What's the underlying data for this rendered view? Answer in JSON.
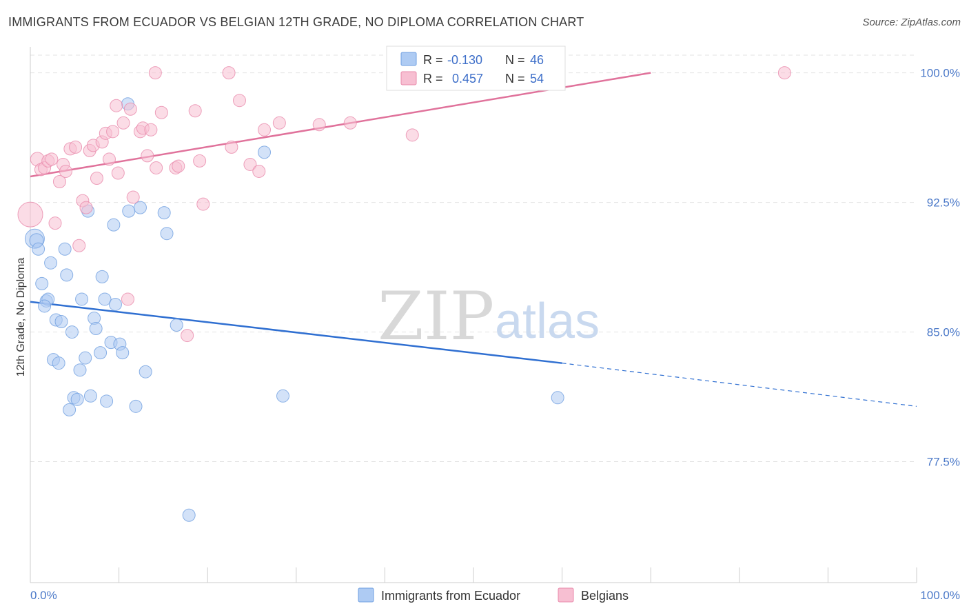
{
  "header": {
    "title": "IMMIGRANTS FROM ECUADOR VS BELGIAN 12TH GRADE, NO DIPLOMA CORRELATION CHART",
    "source": "Source: ZipAtlas.com"
  },
  "watermark": {
    "part1": "ZIP",
    "part2": "atlas"
  },
  "legend": {
    "r_label": "R =",
    "n_label": "N =",
    "items": [
      {
        "name": "Immigrants from Ecuador",
        "r": "-0.130",
        "n": "46",
        "color": "#aecbf3",
        "stroke": "#6f9fe0"
      },
      {
        "name": "Belgians",
        "r": "0.457",
        "n": "54",
        "color": "#f7bfd2",
        "stroke": "#e88aab"
      }
    ]
  },
  "chart_data": {
    "type": "scatter",
    "title": "IMMIGRANTS FROM ECUADOR VS BELGIAN 12TH GRADE, NO DIPLOMA CORRELATION CHART",
    "xlabel": "",
    "ylabel": "12th Grade, No Diploma",
    "xlim": [
      0,
      100
    ],
    "ylim": [
      70.5,
      101.5
    ],
    "x_tick_labels": [
      "0.0%",
      "100.0%"
    ],
    "y_ticks": [
      77.5,
      85.0,
      92.5,
      100.0
    ],
    "y_tick_labels": [
      "77.5%",
      "85.0%",
      "92.5%",
      "100.0%"
    ],
    "grid": true,
    "legend_position": "top-center",
    "series": [
      {
        "name": "Immigrants from Ecuador",
        "color": "#6f9fe0",
        "fill": "#aecbf3",
        "trend": {
          "x0": 0,
          "y0": 86.75,
          "x1": 60,
          "y1": 83.2,
          "dashed_to_x": 100,
          "dashed_to_y": 80.7
        },
        "points": [
          [
            0.5,
            90.4,
            14
          ],
          [
            0.7,
            90.3,
            10
          ],
          [
            0.9,
            89.8,
            9
          ],
          [
            2.3,
            89.0,
            9
          ],
          [
            3.9,
            89.8,
            9
          ],
          [
            4.1,
            88.3,
            9
          ],
          [
            1.3,
            87.8,
            9
          ],
          [
            1.8,
            86.8,
            9
          ],
          [
            2.0,
            86.9,
            9
          ],
          [
            1.6,
            86.5,
            9
          ],
          [
            2.9,
            85.7,
            9
          ],
          [
            3.5,
            85.6,
            9
          ],
          [
            4.7,
            85.0,
            9
          ],
          [
            5.8,
            86.9,
            9
          ],
          [
            7.2,
            85.8,
            9
          ],
          [
            7.4,
            85.2,
            9
          ],
          [
            8.1,
            88.2,
            9
          ],
          [
            8.4,
            86.9,
            9
          ],
          [
            9.6,
            86.6,
            9
          ],
          [
            9.1,
            84.4,
            9
          ],
          [
            10.1,
            84.3,
            9
          ],
          [
            10.4,
            83.8,
            9
          ],
          [
            7.9,
            83.8,
            9
          ],
          [
            6.2,
            83.5,
            9
          ],
          [
            2.6,
            83.4,
            9
          ],
          [
            3.2,
            83.2,
            9
          ],
          [
            5.6,
            82.8,
            9
          ],
          [
            13.0,
            82.7,
            9
          ],
          [
            4.9,
            81.2,
            9
          ],
          [
            5.3,
            81.1,
            9
          ],
          [
            6.8,
            81.3,
            9
          ],
          [
            8.6,
            81.0,
            9
          ],
          [
            11.9,
            80.7,
            9
          ],
          [
            4.4,
            80.5,
            9
          ],
          [
            11.0,
            98.2,
            9
          ],
          [
            9.4,
            91.2,
            9
          ],
          [
            11.1,
            92.0,
            9
          ],
          [
            12.4,
            92.2,
            9
          ],
          [
            6.5,
            92.0,
            9
          ],
          [
            15.1,
            91.9,
            9
          ],
          [
            15.4,
            90.7,
            9
          ],
          [
            16.5,
            85.4,
            9
          ],
          [
            26.4,
            95.4,
            9
          ],
          [
            28.5,
            81.3,
            9
          ],
          [
            59.5,
            81.2,
            9
          ],
          [
            17.9,
            74.4,
            9
          ]
        ]
      },
      {
        "name": "Belgians",
        "color": "#e88aab",
        "fill": "#f7bfd2",
        "trend": {
          "x0": 0,
          "y0": 94.0,
          "x1": 70,
          "y1": 100.0
        },
        "points": [
          [
            0.0,
            91.8,
            18
          ],
          [
            0.8,
            95.0,
            10
          ],
          [
            1.2,
            94.4,
            9
          ],
          [
            1.6,
            94.5,
            9
          ],
          [
            2.0,
            94.9,
            9
          ],
          [
            2.4,
            95.0,
            9
          ],
          [
            2.8,
            91.3,
            9
          ],
          [
            3.3,
            93.7,
            9
          ],
          [
            3.7,
            94.7,
            9
          ],
          [
            4.0,
            94.3,
            9
          ],
          [
            4.5,
            95.6,
            9
          ],
          [
            5.1,
            95.7,
            9
          ],
          [
            5.5,
            90.0,
            9
          ],
          [
            5.9,
            92.6,
            9
          ],
          [
            6.3,
            92.2,
            9
          ],
          [
            6.7,
            95.5,
            9
          ],
          [
            7.1,
            95.8,
            9
          ],
          [
            7.5,
            93.9,
            9
          ],
          [
            8.1,
            96.0,
            9
          ],
          [
            8.5,
            96.5,
            9
          ],
          [
            8.9,
            95.0,
            9
          ],
          [
            9.3,
            96.6,
            9
          ],
          [
            9.9,
            94.2,
            9
          ],
          [
            9.7,
            98.1,
            9
          ],
          [
            10.5,
            97.1,
            9
          ],
          [
            11.3,
            97.9,
            9
          ],
          [
            11.6,
            92.8,
            9
          ],
          [
            12.4,
            96.6,
            9
          ],
          [
            12.7,
            96.8,
            9
          ],
          [
            13.2,
            95.2,
            9
          ],
          [
            13.6,
            96.7,
            9
          ],
          [
            14.2,
            94.5,
            9
          ],
          [
            14.8,
            97.7,
            9
          ],
          [
            16.4,
            94.5,
            9
          ],
          [
            16.7,
            94.6,
            9
          ],
          [
            18.6,
            97.8,
            9
          ],
          [
            19.1,
            94.9,
            9
          ],
          [
            19.5,
            92.4,
            9
          ],
          [
            22.4,
            100.0,
            9
          ],
          [
            14.1,
            100.0,
            9
          ],
          [
            22.7,
            95.7,
            9
          ],
          [
            23.6,
            98.4,
            9
          ],
          [
            24.8,
            94.7,
            9
          ],
          [
            25.8,
            94.3,
            9
          ],
          [
            26.4,
            96.7,
            9
          ],
          [
            28.1,
            97.1,
            9
          ],
          [
            32.6,
            97.0,
            9
          ],
          [
            36.1,
            97.1,
            9
          ],
          [
            43.0,
            100.0,
            9
          ],
          [
            43.7,
            100.0,
            9
          ],
          [
            43.1,
            96.4,
            9
          ],
          [
            85.1,
            100.0,
            9
          ],
          [
            11.0,
            86.9,
            9
          ],
          [
            17.7,
            84.8,
            9
          ]
        ]
      }
    ]
  }
}
